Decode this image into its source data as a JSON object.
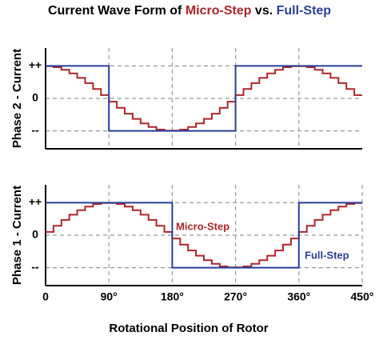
{
  "chart_data": [
    {
      "type": "line",
      "step": "post",
      "title": "Current Wave Form of Micro-Step vs. Full-Step",
      "ylabel": "Phase 2 - Current",
      "xlim": [
        0,
        450
      ],
      "xticks": [
        90,
        180,
        270,
        360
      ],
      "ylim": [
        -1.55,
        1.55
      ],
      "yticks": [
        {
          "value": 1,
          "label": "++"
        },
        {
          "value": 0,
          "label": "0"
        },
        {
          "value": -1,
          "label": "--"
        }
      ],
      "grid": true,
      "series": [
        {
          "name": "Micro-Step",
          "color": "#b0252a",
          "x": [
            0,
            11.25,
            22.5,
            33.75,
            45,
            56.25,
            67.5,
            78.75,
            90,
            101.25,
            112.5,
            123.75,
            135,
            146.25,
            157.5,
            168.75,
            180,
            191.25,
            202.5,
            213.75,
            225,
            236.25,
            247.5,
            258.75,
            270,
            281.25,
            292.5,
            303.75,
            315,
            326.25,
            337.5,
            348.75,
            360,
            371.25,
            382.5,
            393.75,
            405,
            416.25,
            427.5,
            438.75,
            450
          ],
          "values": [
            0.99,
            0.96,
            0.88,
            0.77,
            0.63,
            0.47,
            0.29,
            0.1,
            -0.1,
            -0.29,
            -0.47,
            -0.63,
            -0.77,
            -0.88,
            -0.96,
            -0.99,
            -0.99,
            -0.96,
            -0.88,
            -0.77,
            -0.63,
            -0.47,
            -0.29,
            -0.1,
            0.1,
            0.29,
            0.47,
            0.63,
            0.77,
            0.88,
            0.96,
            0.99,
            0.99,
            0.96,
            0.88,
            0.77,
            0.63,
            0.47,
            0.29,
            0.1,
            0.1
          ]
        },
        {
          "name": "Full-Step",
          "color": "#2a3f9b",
          "x": [
            0,
            90,
            270,
            450
          ],
          "values": [
            1,
            -1,
            1,
            1
          ]
        }
      ]
    },
    {
      "type": "line",
      "step": "post",
      "ylabel": "Phase 1 - Current",
      "xlabel": "Rotational Position of Rotor",
      "xlim": [
        0,
        450
      ],
      "xticks": [
        0,
        {
          "value": 90,
          "label": "90°"
        },
        {
          "value": 180,
          "label": "180°"
        },
        {
          "value": 270,
          "label": "270°"
        },
        {
          "value": 360,
          "label": "360°"
        },
        {
          "value": 450,
          "label": "450°"
        }
      ],
      "ylim": [
        -1.55,
        1.55
      ],
      "yticks": [
        {
          "value": 1,
          "label": "++"
        },
        {
          "value": 0,
          "label": "0"
        },
        {
          "value": -1,
          "label": "--"
        }
      ],
      "grid": true,
      "series": [
        {
          "name": "Micro-Step",
          "color": "#b0252a",
          "x": [
            0,
            11.25,
            22.5,
            33.75,
            45,
            56.25,
            67.5,
            78.75,
            90,
            101.25,
            112.5,
            123.75,
            135,
            146.25,
            157.5,
            168.75,
            180,
            191.25,
            202.5,
            213.75,
            225,
            236.25,
            247.5,
            258.75,
            270,
            281.25,
            292.5,
            303.75,
            315,
            326.25,
            337.5,
            348.75,
            360,
            371.25,
            382.5,
            393.75,
            405,
            416.25,
            427.5,
            438.75,
            450
          ],
          "values": [
            0.1,
            0.29,
            0.47,
            0.63,
            0.77,
            0.88,
            0.96,
            0.99,
            0.99,
            0.96,
            0.88,
            0.77,
            0.63,
            0.47,
            0.29,
            0.1,
            -0.1,
            -0.29,
            -0.47,
            -0.63,
            -0.77,
            -0.88,
            -0.96,
            -0.99,
            -0.99,
            -0.96,
            -0.88,
            -0.77,
            -0.63,
            -0.47,
            -0.29,
            -0.1,
            0.1,
            0.29,
            0.47,
            0.63,
            0.77,
            0.88,
            0.96,
            0.99,
            0.99
          ]
        },
        {
          "name": "Full-Step",
          "color": "#2a3f9b",
          "x": [
            0,
            180,
            360,
            450
          ],
          "values": [
            1,
            -1,
            1,
            1
          ]
        }
      ]
    }
  ]
}
